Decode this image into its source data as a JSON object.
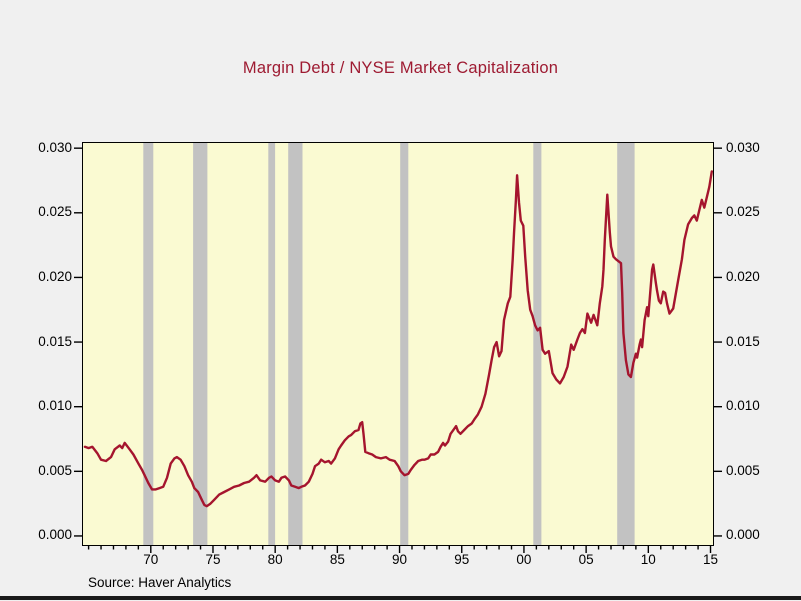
{
  "title": "Margin Debt / NYSE Market Capitalization",
  "source_note": "Source: Haver Analytics",
  "colors": {
    "background": "#f0f0f0",
    "plot_background": "#fafad2",
    "recession_band": "#c2c2c2",
    "line": "#a5152e",
    "title_text": "#9e1b32",
    "axis_text": "#000000",
    "plot_border": "#000000",
    "bottom_bar": "#1a1a1a"
  },
  "chart_data": {
    "type": "line",
    "title": "Margin Debt / NYSE Market Capitalization",
    "xlabel": "",
    "ylabel": "",
    "grid": false,
    "legend_position": "none",
    "ylim": [
      0.0,
      0.03
    ],
    "y_axis_edge_values": [
      -0.0007,
      0.0304
    ],
    "x_axis_edge_values": [
      1964.55,
      2015.2
    ],
    "y_ticks": [
      0.03,
      0.025,
      0.02,
      0.015,
      0.01,
      0.005,
      0.0
    ],
    "y_tick_labels": [
      "0.030",
      "0.025",
      "0.020",
      "0.015",
      "0.010",
      "0.005",
      "0.000"
    ],
    "y_axis_sides": [
      "left",
      "right"
    ],
    "x_ticks": [
      1970,
      1975,
      1980,
      1985,
      1990,
      1995,
      2000,
      2005,
      2010,
      2015
    ],
    "x_tick_labels": [
      "70",
      "75",
      "80",
      "85",
      "90",
      "95",
      "00",
      "05",
      "10",
      "15"
    ],
    "x_minor_tick_step": 1,
    "x_minor_tick_start": 1965,
    "x_minor_tick_end": 2015,
    "recession_bands": [
      [
        1969.4,
        1970.2
      ],
      [
        1973.4,
        1974.55
      ],
      [
        1979.45,
        1980.0
      ],
      [
        1981.05,
        1982.2
      ],
      [
        1990.05,
        1990.7
      ],
      [
        2000.75,
        2001.4
      ],
      [
        2007.5,
        2008.9
      ]
    ],
    "series": [
      {
        "name": "Margin Debt / NYSE Market Capitalization",
        "color": "#a5152e",
        "points": [
          [
            1964.7,
            0.0069
          ],
          [
            1965.0,
            0.0068
          ],
          [
            1965.3,
            0.0069
          ],
          [
            1965.7,
            0.0064
          ],
          [
            1966.0,
            0.0059
          ],
          [
            1966.4,
            0.0058
          ],
          [
            1966.8,
            0.0061
          ],
          [
            1967.1,
            0.0067
          ],
          [
            1967.5,
            0.007
          ],
          [
            1967.7,
            0.0068
          ],
          [
            1967.9,
            0.0072
          ],
          [
            1968.3,
            0.0067
          ],
          [
            1968.6,
            0.0063
          ],
          [
            1969.0,
            0.0056
          ],
          [
            1969.3,
            0.0051
          ],
          [
            1969.5,
            0.0047
          ],
          [
            1969.8,
            0.0041
          ],
          [
            1970.1,
            0.0036
          ],
          [
            1970.4,
            0.0036
          ],
          [
            1970.7,
            0.0037
          ],
          [
            1971.0,
            0.0038
          ],
          [
            1971.3,
            0.0045
          ],
          [
            1971.6,
            0.0056
          ],
          [
            1971.9,
            0.006
          ],
          [
            1972.1,
            0.0061
          ],
          [
            1972.4,
            0.0059
          ],
          [
            1972.7,
            0.0054
          ],
          [
            1973.0,
            0.0047
          ],
          [
            1973.3,
            0.0042
          ],
          [
            1973.5,
            0.0037
          ],
          [
            1973.8,
            0.0034
          ],
          [
            1974.1,
            0.0028
          ],
          [
            1974.3,
            0.0024
          ],
          [
            1974.5,
            0.0023
          ],
          [
            1974.8,
            0.0025
          ],
          [
            1975.1,
            0.0028
          ],
          [
            1975.5,
            0.0032
          ],
          [
            1975.9,
            0.0034
          ],
          [
            1976.3,
            0.0036
          ],
          [
            1976.7,
            0.0038
          ],
          [
            1977.1,
            0.0039
          ],
          [
            1977.5,
            0.0041
          ],
          [
            1977.9,
            0.0042
          ],
          [
            1978.3,
            0.0045
          ],
          [
            1978.5,
            0.0047
          ],
          [
            1978.8,
            0.0043
          ],
          [
            1979.2,
            0.0042
          ],
          [
            1979.5,
            0.0045
          ],
          [
            1979.7,
            0.0046
          ],
          [
            1980.0,
            0.0043
          ],
          [
            1980.3,
            0.0042
          ],
          [
            1980.5,
            0.0045
          ],
          [
            1980.8,
            0.0046
          ],
          [
            1981.1,
            0.0043
          ],
          [
            1981.3,
            0.0039
          ],
          [
            1981.6,
            0.0038
          ],
          [
            1981.9,
            0.0037
          ],
          [
            1982.1,
            0.0038
          ],
          [
            1982.4,
            0.0039
          ],
          [
            1982.7,
            0.0042
          ],
          [
            1983.0,
            0.0048
          ],
          [
            1983.2,
            0.0054
          ],
          [
            1983.5,
            0.0056
          ],
          [
            1983.7,
            0.0059
          ],
          [
            1984.0,
            0.0057
          ],
          [
            1984.3,
            0.0058
          ],
          [
            1984.5,
            0.0056
          ],
          [
            1984.8,
            0.006
          ],
          [
            1985.1,
            0.0067
          ],
          [
            1985.3,
            0.007
          ],
          [
            1985.6,
            0.0074
          ],
          [
            1985.9,
            0.0077
          ],
          [
            1986.1,
            0.0078
          ],
          [
            1986.4,
            0.0081
          ],
          [
            1986.7,
            0.0082
          ],
          [
            1986.85,
            0.0087
          ],
          [
            1987.0,
            0.0088
          ],
          [
            1987.1,
            0.0079
          ],
          [
            1987.25,
            0.0065
          ],
          [
            1987.5,
            0.0064
          ],
          [
            1987.8,
            0.0063
          ],
          [
            1988.1,
            0.0061
          ],
          [
            1988.5,
            0.006
          ],
          [
            1988.9,
            0.0061
          ],
          [
            1989.2,
            0.0059
          ],
          [
            1989.6,
            0.0058
          ],
          [
            1989.9,
            0.0054
          ],
          [
            1990.1,
            0.005
          ],
          [
            1990.4,
            0.0047
          ],
          [
            1990.7,
            0.0048
          ],
          [
            1990.9,
            0.0051
          ],
          [
            1991.2,
            0.0055
          ],
          [
            1991.5,
            0.0058
          ],
          [
            1991.8,
            0.0059
          ],
          [
            1992.0,
            0.0059
          ],
          [
            1992.3,
            0.006
          ],
          [
            1992.5,
            0.0063
          ],
          [
            1992.8,
            0.0063
          ],
          [
            1993.1,
            0.0065
          ],
          [
            1993.3,
            0.0069
          ],
          [
            1993.5,
            0.0072
          ],
          [
            1993.65,
            0.007
          ],
          [
            1993.9,
            0.0073
          ],
          [
            1994.1,
            0.0079
          ],
          [
            1994.4,
            0.0083
          ],
          [
            1994.55,
            0.0085
          ],
          [
            1994.7,
            0.0081
          ],
          [
            1994.9,
            0.0079
          ],
          [
            1995.2,
            0.0082
          ],
          [
            1995.5,
            0.0085
          ],
          [
            1995.8,
            0.0087
          ],
          [
            1996.0,
            0.009
          ],
          [
            1996.3,
            0.0094
          ],
          [
            1996.6,
            0.01
          ],
          [
            1996.9,
            0.011
          ],
          [
            1997.2,
            0.0125
          ],
          [
            1997.4,
            0.0136
          ],
          [
            1997.6,
            0.0146
          ],
          [
            1997.8,
            0.015
          ],
          [
            1998.0,
            0.0139
          ],
          [
            1998.2,
            0.0143
          ],
          [
            1998.4,
            0.0167
          ],
          [
            1998.7,
            0.018
          ],
          [
            1998.9,
            0.0185
          ],
          [
            1999.1,
            0.0214
          ],
          [
            1999.2,
            0.0234
          ],
          [
            1999.35,
            0.026
          ],
          [
            1999.45,
            0.0279
          ],
          [
            1999.6,
            0.0258
          ],
          [
            1999.75,
            0.0244
          ],
          [
            1999.95,
            0.024
          ],
          [
            2000.1,
            0.0216
          ],
          [
            2000.3,
            0.019
          ],
          [
            2000.5,
            0.0175
          ],
          [
            2000.7,
            0.017
          ],
          [
            2000.9,
            0.0163
          ],
          [
            2001.1,
            0.0159
          ],
          [
            2001.3,
            0.0161
          ],
          [
            2001.5,
            0.0144
          ],
          [
            2001.7,
            0.0141
          ],
          [
            2002.0,
            0.0143
          ],
          [
            2002.3,
            0.0126
          ],
          [
            2002.6,
            0.0121
          ],
          [
            2002.9,
            0.0118
          ],
          [
            2003.2,
            0.0123
          ],
          [
            2003.5,
            0.0131
          ],
          [
            2003.8,
            0.0148
          ],
          [
            2004.0,
            0.0144
          ],
          [
            2004.3,
            0.0152
          ],
          [
            2004.5,
            0.0157
          ],
          [
            2004.7,
            0.016
          ],
          [
            2004.9,
            0.0157
          ],
          [
            2005.1,
            0.0172
          ],
          [
            2005.4,
            0.0165
          ],
          [
            2005.6,
            0.0171
          ],
          [
            2005.9,
            0.0163
          ],
          [
            2006.1,
            0.018
          ],
          [
            2006.3,
            0.0193
          ],
          [
            2006.4,
            0.0206
          ],
          [
            2006.5,
            0.0229
          ],
          [
            2006.7,
            0.0264
          ],
          [
            2006.9,
            0.0235
          ],
          [
            2007.0,
            0.0224
          ],
          [
            2007.2,
            0.0216
          ],
          [
            2007.4,
            0.0214
          ],
          [
            2007.8,
            0.0211
          ],
          [
            2007.9,
            0.0188
          ],
          [
            2008.0,
            0.0157
          ],
          [
            2008.2,
            0.0136
          ],
          [
            2008.4,
            0.0125
          ],
          [
            2008.6,
            0.0123
          ],
          [
            2008.8,
            0.0134
          ],
          [
            2009.0,
            0.0141
          ],
          [
            2009.1,
            0.0138
          ],
          [
            2009.3,
            0.0148
          ],
          [
            2009.4,
            0.0152
          ],
          [
            2009.5,
            0.0146
          ],
          [
            2009.7,
            0.0167
          ],
          [
            2009.9,
            0.0177
          ],
          [
            2010.0,
            0.017
          ],
          [
            2010.3,
            0.0206
          ],
          [
            2010.4,
            0.021
          ],
          [
            2010.6,
            0.0196
          ],
          [
            2010.7,
            0.019
          ],
          [
            2010.85,
            0.0182
          ],
          [
            2011.0,
            0.018
          ],
          [
            2011.2,
            0.0189
          ],
          [
            2011.35,
            0.0188
          ],
          [
            2011.5,
            0.018
          ],
          [
            2011.7,
            0.0172
          ],
          [
            2012.0,
            0.0176
          ],
          [
            2012.4,
            0.0198
          ],
          [
            2012.7,
            0.0214
          ],
          [
            2012.9,
            0.0229
          ],
          [
            2013.2,
            0.0241
          ],
          [
            2013.5,
            0.0246
          ],
          [
            2013.7,
            0.0248
          ],
          [
            2013.9,
            0.0244
          ],
          [
            2014.1,
            0.0252
          ],
          [
            2014.3,
            0.026
          ],
          [
            2014.5,
            0.0254
          ],
          [
            2014.7,
            0.0262
          ],
          [
            2014.9,
            0.027
          ],
          [
            2015.1,
            0.0282
          ]
        ]
      }
    ]
  }
}
